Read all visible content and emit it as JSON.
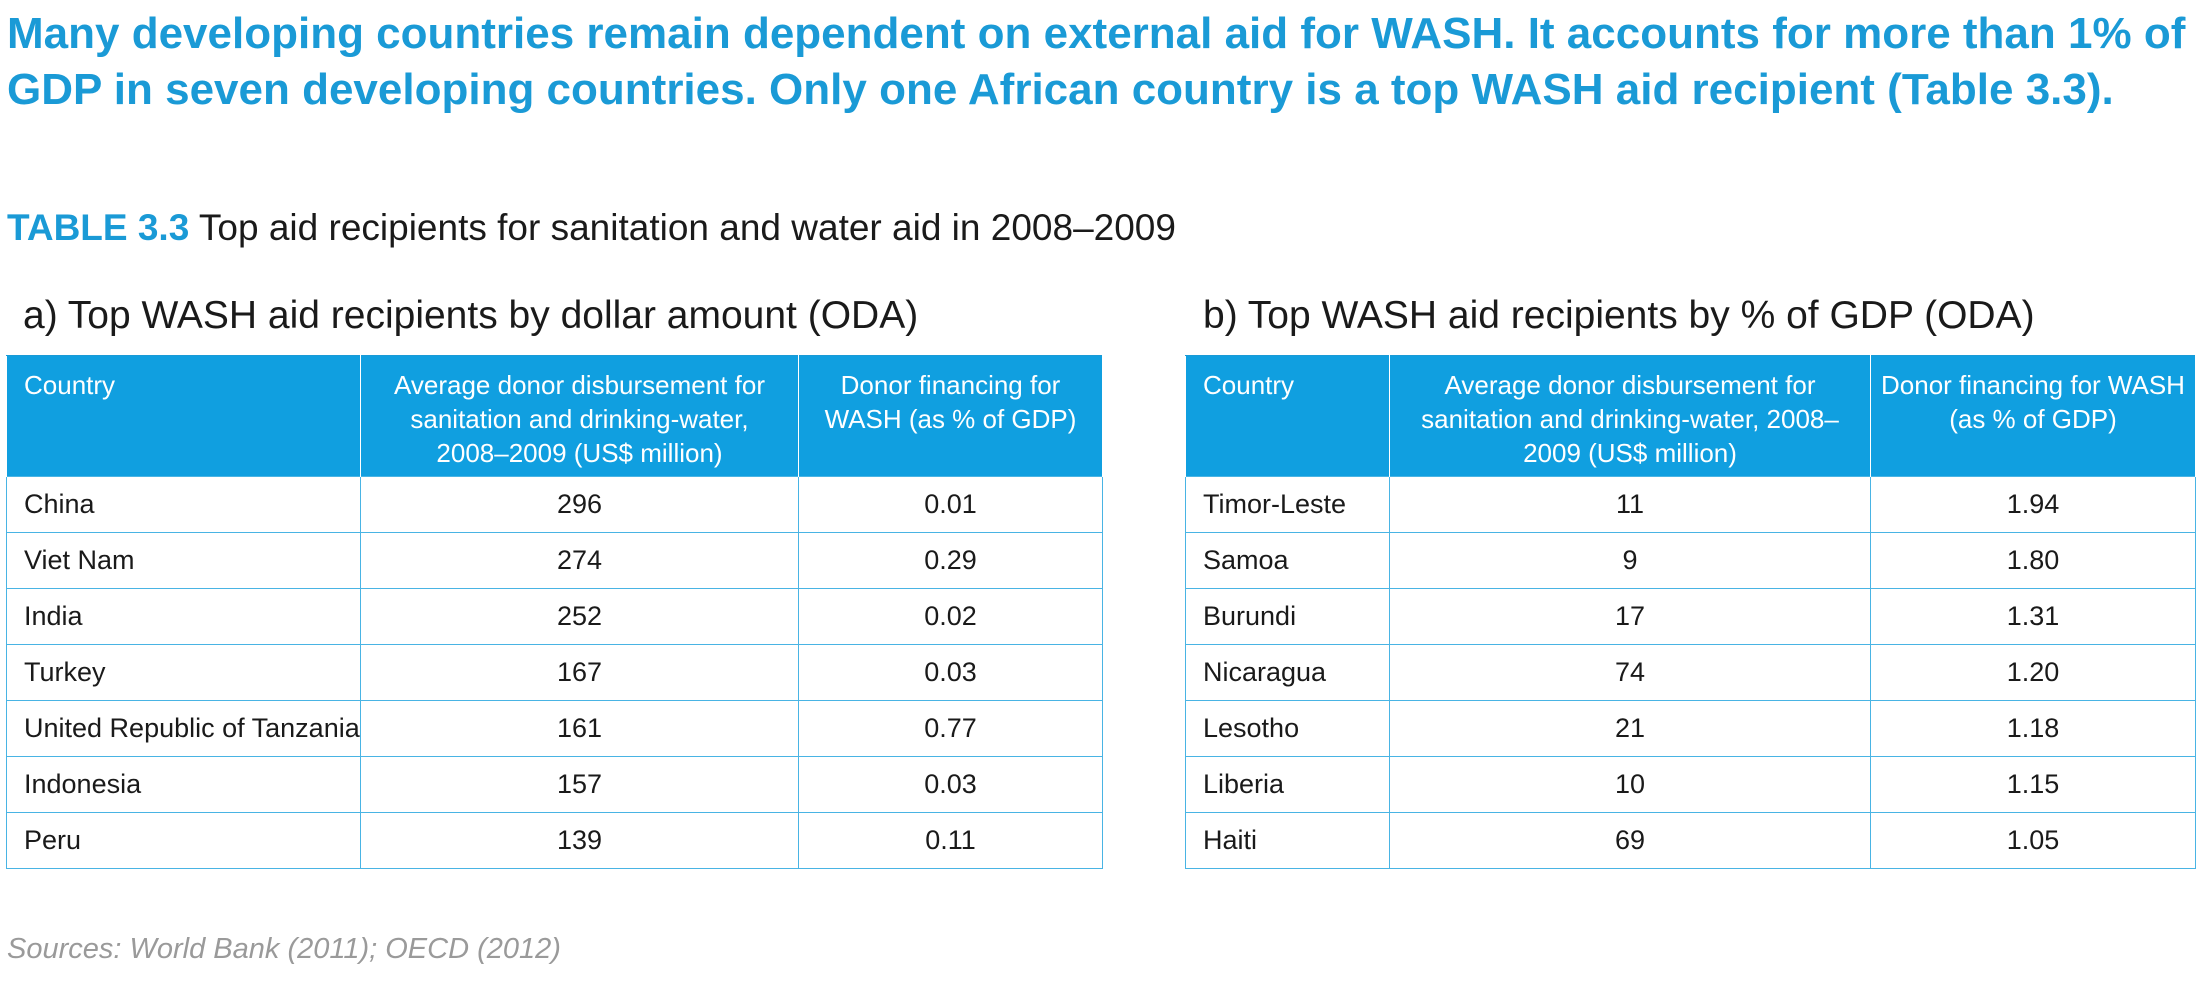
{
  "headline": "Many developing countries remain dependent on external aid for WASH. It accounts for more than 1% of GDP in seven developing countries. Only one African country is a top WASH aid recipient (Table 3.3).",
  "caption": {
    "number": "TABLE 3.3",
    "text": " Top aid recipients for sanitation and water aid in 2008–2009"
  },
  "colors": {
    "accent": "#1a9ad6",
    "header_fill": "#109fe0",
    "grid_line": "#49b4e4",
    "source_text": "#9a9a9a"
  },
  "tables": [
    {
      "subtitle": "a) Top WASH aid recipients by dollar amount (ODA)",
      "headers": [
        "Country",
        "Average donor disbursement for sanitation and drinking-water, 2008–2009 (US$ million)",
        "Donor financing for WASH (as % of GDP)"
      ],
      "rows": [
        [
          "China",
          "296",
          "0.01"
        ],
        [
          "Viet Nam",
          "274",
          "0.29"
        ],
        [
          "India",
          "252",
          "0.02"
        ],
        [
          "Turkey",
          "167",
          "0.03"
        ],
        [
          "United Republic of Tanzania",
          "161",
          "0.77"
        ],
        [
          "Indonesia",
          "157",
          "0.03"
        ],
        [
          "Peru",
          "139",
          "0.11"
        ]
      ]
    },
    {
      "subtitle": "b) Top WASH aid recipients by % of GDP (ODA)",
      "headers": [
        "Country",
        "Average donor disbursement for sanitation and drinking-water, 2008–2009 (US$ million)",
        "Donor financing for WASH (as % of GDP)"
      ],
      "rows": [
        [
          "Timor-Leste",
          "11",
          "1.94"
        ],
        [
          "Samoa",
          "9",
          "1.80"
        ],
        [
          "Burundi",
          "17",
          "1.31"
        ],
        [
          "Nicaragua",
          "74",
          "1.20"
        ],
        [
          "Lesotho",
          "21",
          "1.18"
        ],
        [
          "Liberia",
          "10",
          "1.15"
        ],
        [
          "Haiti",
          "69",
          "1.05"
        ]
      ]
    }
  ],
  "sources": "Sources: World Bank (2011); OECD (2012)"
}
